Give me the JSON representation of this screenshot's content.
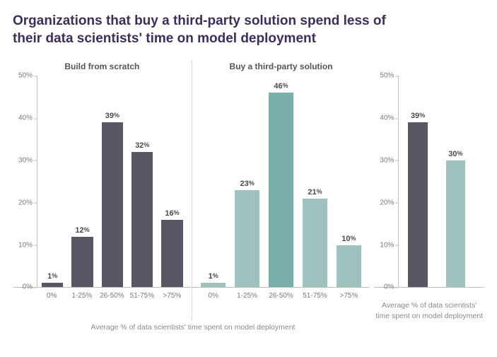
{
  "title": "Organizations that buy a third-party solution spend less of their data scientists' time on model deployment",
  "y_axis": {
    "min": 0,
    "max": 50,
    "step": 10,
    "suffix": "%"
  },
  "x_caption_main": "Average % of data scientists' time spent on model deployment",
  "x_caption_right": "Average % of data scientists' time spent on model deployment",
  "colors": {
    "build": "#595664",
    "buy": "#9fc2be",
    "buy_highlight": "#7aaea8",
    "axis": "#bfbfbf",
    "text": "#7a7a7a",
    "title": "#3d2e5c"
  },
  "panels": {
    "build": {
      "title": "Build from scratch",
      "categories": [
        "0%",
        "1-25%",
        "26-50%",
        "51-75%",
        ">75%"
      ],
      "values": [
        1,
        12,
        39,
        32,
        16
      ],
      "bar_color": "#595664"
    },
    "buy": {
      "title": "Buy a third-party solution",
      "categories": [
        "0%",
        "1-25%",
        "26-50%",
        "51-75%",
        ">75%"
      ],
      "values": [
        1,
        23,
        46,
        21,
        10
      ],
      "bar_color": "#9fc2be",
      "highlight_index": 2,
      "highlight_color": "#7aaea8"
    },
    "summary": {
      "values": [
        39,
        30
      ],
      "bar_colors": [
        "#595664",
        "#9fc2be"
      ]
    }
  }
}
